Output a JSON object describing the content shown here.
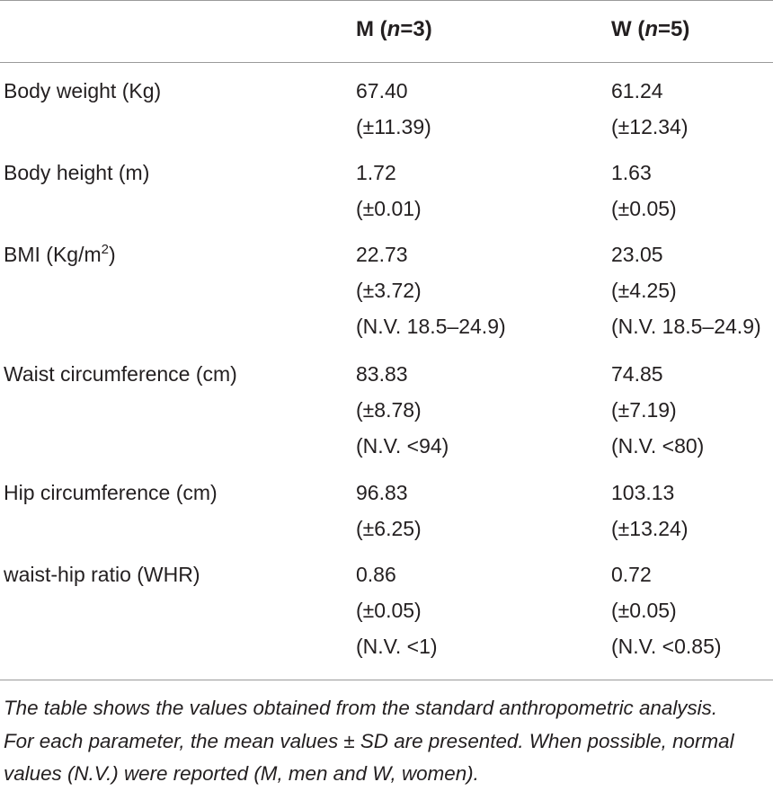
{
  "header": {
    "m_letter": "M",
    "m_n_symbol": "n",
    "m_n_value": "=3",
    "w_letter": "W",
    "w_n_symbol": "n",
    "w_n_value": "=5"
  },
  "rows": [
    {
      "parameter": "Body weight (Kg)",
      "m": {
        "mean": "67.40",
        "sd": "(±11.39)"
      },
      "w": {
        "mean": "61.24",
        "sd": "(±12.34)"
      }
    },
    {
      "parameter": "Body height (m)",
      "m": {
        "mean": "1.72",
        "sd": "(±0.01)"
      },
      "w": {
        "mean": "1.63",
        "sd": "(±0.05)"
      }
    },
    {
      "parameter_prefix": "BMI (Kg/m",
      "parameter_sup": "2",
      "parameter_suffix": ")",
      "m": {
        "mean": "22.73",
        "sd": "(±3.72)",
        "nv": "(N.V. 18.5–24.9)"
      },
      "w": {
        "mean": "23.05",
        "sd": "(±4.25)",
        "nv": "(N.V. 18.5–24.9)"
      }
    },
    {
      "parameter": "Waist circumference (cm)",
      "m": {
        "mean": "83.83",
        "sd": "(±8.78)",
        "nv": "(N.V. <94)"
      },
      "w": {
        "mean": "74.85",
        "sd": "(±7.19)",
        "nv": "(N.V. <80)"
      }
    },
    {
      "parameter": "Hip circumference (cm)",
      "m": {
        "mean": "96.83",
        "sd": "(±6.25)"
      },
      "w": {
        "mean": "103.13",
        "sd": "(±13.24)"
      }
    },
    {
      "parameter": "waist-hip ratio (WHR)",
      "m": {
        "mean": "0.86",
        "sd": "(±0.05)",
        "nv": "(N.V. <1)"
      },
      "w": {
        "mean": "0.72",
        "sd": "(±0.05)",
        "nv": "(N.V. <0.85)"
      }
    }
  ],
  "footnote": [
    "The table shows the values obtained from the standard anthropometric analysis.",
    "For each parameter, the mean values ± SD are presented. When possible, normal",
    "values (N.V.) were reported (M, men and W, women)."
  ]
}
